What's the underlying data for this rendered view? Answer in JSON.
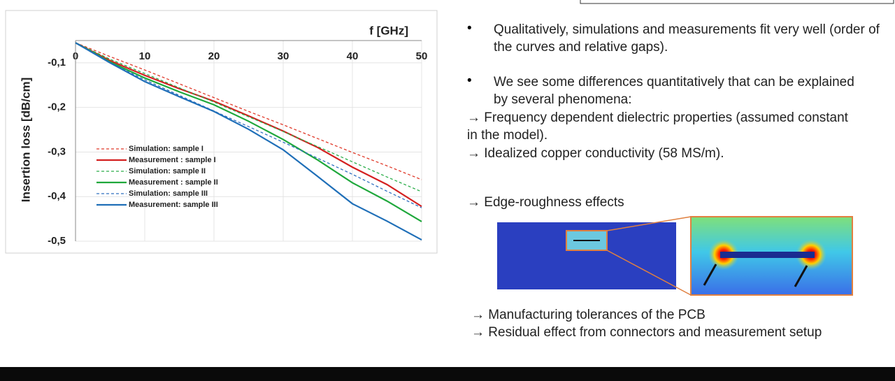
{
  "chart_data": {
    "type": "line",
    "x_label": "f [GHz]",
    "y_label": "Insertion loss [dB/cm]",
    "x": [
      0,
      5,
      10,
      15,
      20,
      25,
      30,
      35,
      40,
      45,
      50
    ],
    "xlim": [
      0,
      50
    ],
    "xticks": [
      0,
      10,
      20,
      30,
      40,
      50
    ],
    "ylim": [
      -0.5,
      -0.05
    ],
    "yticks": [
      {
        "value": -0.1,
        "label": "-0,1"
      },
      {
        "value": -0.2,
        "label": "-0,2"
      },
      {
        "value": -0.3,
        "label": "-0,3"
      },
      {
        "value": -0.4,
        "label": "-0,4"
      },
      {
        "value": -0.5,
        "label": "-0,5"
      }
    ],
    "grid": true,
    "series": [
      {
        "name": "Simulation: sample I",
        "color": "#e03a2a",
        "dashed": true,
        "values": [
          -0.055,
          -0.086,
          -0.116,
          -0.147,
          -0.178,
          -0.209,
          -0.239,
          -0.27,
          -0.301,
          -0.331,
          -0.362
        ]
      },
      {
        "name": "Measurement : sample I",
        "color": "#d42020",
        "dashed": false,
        "values": [
          -0.055,
          -0.095,
          -0.128,
          -0.158,
          -0.186,
          -0.219,
          -0.253,
          -0.29,
          -0.334,
          -0.373,
          -0.422
        ]
      },
      {
        "name": "Simulation: sample II",
        "color": "#2cae4a",
        "dashed": true,
        "values": [
          -0.055,
          -0.092,
          -0.124,
          -0.156,
          -0.188,
          -0.221,
          -0.254,
          -0.288,
          -0.322,
          -0.356,
          -0.389
        ]
      },
      {
        "name": "Measurement : sample II",
        "color": "#1fa83c",
        "dashed": false,
        "values": [
          -0.055,
          -0.098,
          -0.134,
          -0.165,
          -0.194,
          -0.231,
          -0.272,
          -0.318,
          -0.369,
          -0.41,
          -0.456
        ]
      },
      {
        "name": "Simulation: sample III",
        "color": "#2f6fbf",
        "dashed": true,
        "values": [
          -0.055,
          -0.1,
          -0.138,
          -0.173,
          -0.208,
          -0.243,
          -0.278,
          -0.314,
          -0.35,
          -0.388,
          -0.425
        ]
      },
      {
        "name": "Measurement: sample III",
        "color": "#1f6fb8",
        "dashed": false,
        "values": [
          -0.055,
          -0.1,
          -0.142,
          -0.176,
          -0.209,
          -0.249,
          -0.295,
          -0.355,
          -0.416,
          -0.455,
          -0.497
        ]
      }
    ]
  },
  "notes": {
    "bullets": [
      "Qualitatively, simulations and measurements fit very well (order of the curves and relative gaps).",
      "We see some differences quantitatively that can be explained by several phenomena:"
    ],
    "arrows_top": [
      "Frequency dependent dielectric properties  (assumed constant in the model).",
      "Idealized copper conductivity (58 MS/m).",
      "Edge-roughness effects"
    ],
    "arrows_bottom": [
      "Manufacturing tolerances of the PCB",
      "Residual effect from connectors and measurement setup"
    ]
  }
}
